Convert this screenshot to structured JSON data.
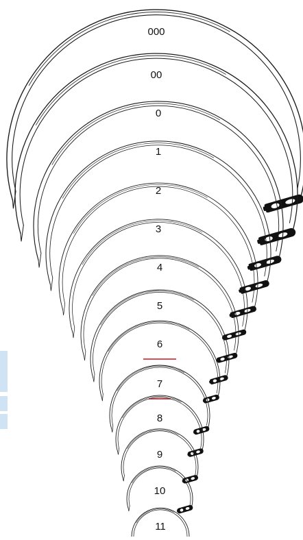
{
  "sizes": [
    "000",
    "00",
    "0",
    "1",
    "2",
    "3",
    "4",
    "5",
    "6",
    "7",
    "8",
    "9",
    "10",
    "11"
  ],
  "highlighted": [
    "6",
    "7"
  ],
  "colors": {
    "line": "#1a1a1a",
    "eye": "#111111",
    "mark": "#d0101a",
    "tab": "#cfe3f5"
  }
}
